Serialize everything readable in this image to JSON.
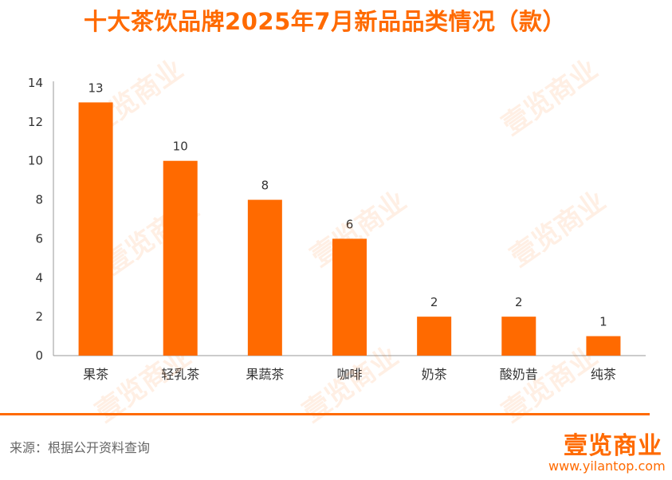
{
  "header": {
    "title": "十大茶饮品牌2025年7月新品品类情况（款）"
  },
  "chart_data": {
    "type": "bar",
    "title": "十大茶饮品牌2025年7月新品品类情况（款）",
    "xlabel": "",
    "ylabel": "",
    "categories": [
      "果茶",
      "轻乳茶",
      "果蔬茶",
      "咖啡",
      "奶茶",
      "酸奶昔",
      "纯茶"
    ],
    "values": [
      13,
      10,
      8,
      6,
      2,
      2,
      1
    ],
    "yticks": [
      "0",
      "2",
      "4",
      "6",
      "8",
      "10",
      "12",
      "14"
    ],
    "ylim": [
      0,
      14
    ],
    "grid": false,
    "legend": "none",
    "bar_color": "#ff6a00"
  },
  "watermark": {
    "text": "壹览商业"
  },
  "footer": {
    "source": "来源：根据公开资料查询",
    "logo": "壹览商业",
    "url": "www.yilantop.com"
  },
  "colors": {
    "accent": "#ff6a00",
    "text": "#333333",
    "axis": "#999999"
  }
}
